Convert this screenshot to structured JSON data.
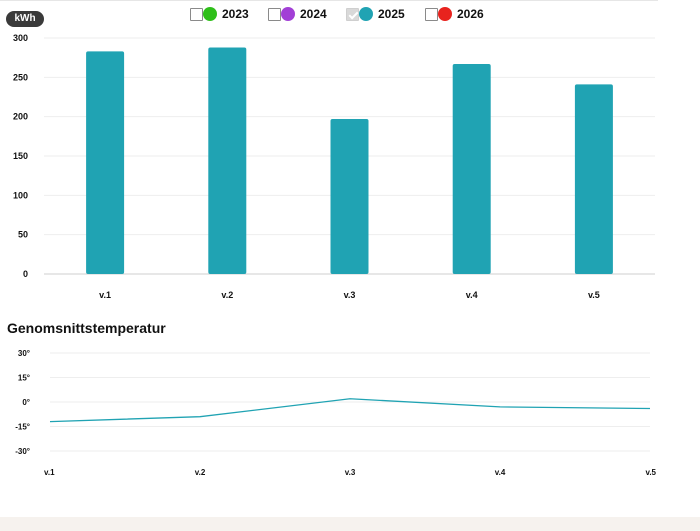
{
  "unit_badge": "kWh",
  "legend": [
    {
      "label": "2023",
      "color": "#2fbf1a",
      "checked": false,
      "icon": "green-dot-icon"
    },
    {
      "label": "2024",
      "color": "#a23fd6",
      "checked": false,
      "icon": "purple-dot-icon"
    },
    {
      "label": "2025",
      "color": "#20a3b3",
      "checked": true,
      "icon": "teal-dot-icon"
    },
    {
      "label": "2026",
      "color": "#e8231e",
      "checked": false,
      "icon": "red-dot-icon"
    }
  ],
  "temp_title": "Genomsnittstemperatur",
  "chart_data": [
    {
      "type": "bar",
      "categories": [
        "v.1",
        "v.2",
        "v.3",
        "v.4",
        "v.5"
      ],
      "series": [
        {
          "name": "2025",
          "color": "#20a3b3",
          "values": [
            283,
            288,
            197,
            267,
            241
          ]
        }
      ],
      "ylabel": "kWh",
      "yticks": [
        0,
        50,
        100,
        150,
        200,
        250,
        300
      ],
      "ylim": [
        0,
        300
      ],
      "grid": true,
      "legend": "top"
    },
    {
      "type": "line",
      "title": "Genomsnittstemperatur",
      "categories": [
        "v.1",
        "v.2",
        "v.3",
        "v.4",
        "v.5"
      ],
      "series": [
        {
          "color": "#20a3b3",
          "values": [
            -12,
            -9,
            2,
            -3,
            -4
          ]
        }
      ],
      "yticks": [
        "30°",
        "15°",
        "0°",
        "-15°",
        "-30°"
      ],
      "ylim": [
        -30,
        30
      ],
      "grid": true
    }
  ]
}
